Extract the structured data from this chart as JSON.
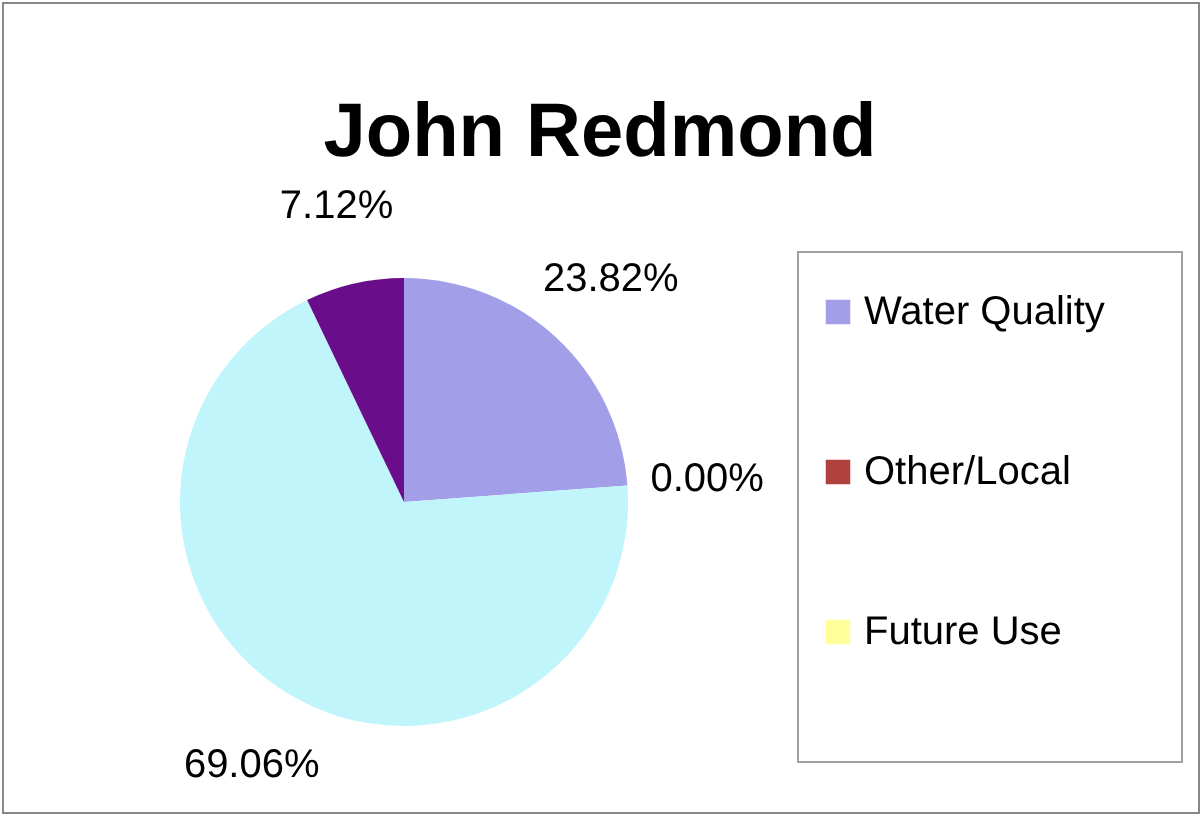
{
  "chart_data": {
    "type": "pie",
    "title": "John Redmond",
    "categories": [
      "Water Quality",
      "Other/Local",
      "Future Use",
      null,
      null
    ],
    "values": [
      23.82,
      0.0,
      0.0,
      69.06,
      7.12
    ],
    "colors": [
      "#a29ee8",
      "#b0413e",
      "#ffff99",
      "#bff5fb",
      "#6a0d8a"
    ],
    "value_labels": [
      "23.82%",
      "0.00%",
      null,
      "69.06%",
      "7.12%"
    ],
    "legend": "right"
  }
}
